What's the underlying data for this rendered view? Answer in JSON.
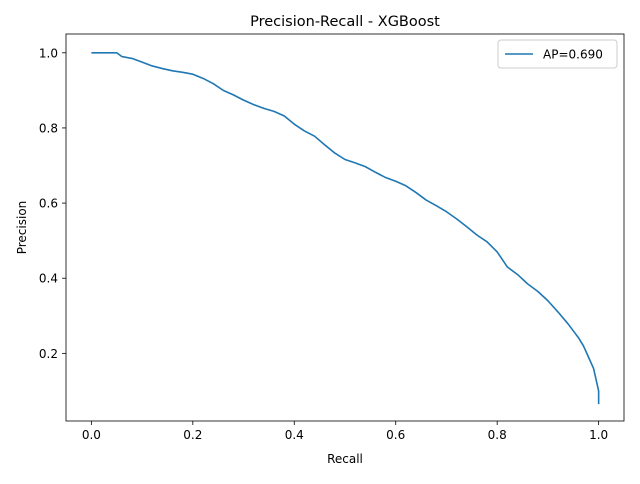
{
  "chart_data": {
    "type": "line",
    "title": "Precision-Recall - XGBoost",
    "xlabel": "Recall",
    "ylabel": "Precision",
    "xlim": [
      -0.05,
      1.05
    ],
    "ylim": [
      0.02,
      1.05
    ],
    "xticks": [
      0.0,
      0.2,
      0.4,
      0.6,
      0.8,
      1.0
    ],
    "xtick_labels": [
      "0.0",
      "0.2",
      "0.4",
      "0.6",
      "0.8",
      "1.0"
    ],
    "yticks": [
      0.2,
      0.4,
      0.6,
      0.8,
      1.0
    ],
    "ytick_labels": [
      "0.2",
      "0.4",
      "0.6",
      "0.8",
      "1.0"
    ],
    "grid": false,
    "legend_position": "upper right",
    "series": [
      {
        "name": "AP=0.690",
        "color": "#1f77b4",
        "x": [
          0.0,
          0.02,
          0.05,
          0.06,
          0.08,
          0.1,
          0.12,
          0.14,
          0.16,
          0.18,
          0.2,
          0.22,
          0.24,
          0.26,
          0.28,
          0.3,
          0.32,
          0.34,
          0.36,
          0.38,
          0.4,
          0.42,
          0.44,
          0.46,
          0.48,
          0.5,
          0.52,
          0.54,
          0.56,
          0.58,
          0.6,
          0.62,
          0.64,
          0.66,
          0.68,
          0.7,
          0.72,
          0.74,
          0.76,
          0.78,
          0.8,
          0.82,
          0.84,
          0.86,
          0.88,
          0.9,
          0.92,
          0.94,
          0.95,
          0.96,
          0.97,
          0.98,
          0.99,
          0.995,
          1.0,
          1.0
        ],
        "y": [
          1.0,
          1.0,
          1.0,
          0.99,
          0.985,
          0.975,
          0.965,
          0.958,
          0.952,
          0.948,
          0.943,
          0.932,
          0.918,
          0.9,
          0.888,
          0.874,
          0.862,
          0.852,
          0.844,
          0.832,
          0.81,
          0.792,
          0.778,
          0.755,
          0.733,
          0.716,
          0.707,
          0.697,
          0.682,
          0.668,
          0.658,
          0.646,
          0.628,
          0.608,
          0.593,
          0.577,
          0.558,
          0.537,
          0.515,
          0.497,
          0.47,
          0.43,
          0.41,
          0.385,
          0.365,
          0.34,
          0.31,
          0.278,
          0.26,
          0.242,
          0.22,
          0.19,
          0.16,
          0.13,
          0.1,
          0.065
        ]
      }
    ]
  }
}
